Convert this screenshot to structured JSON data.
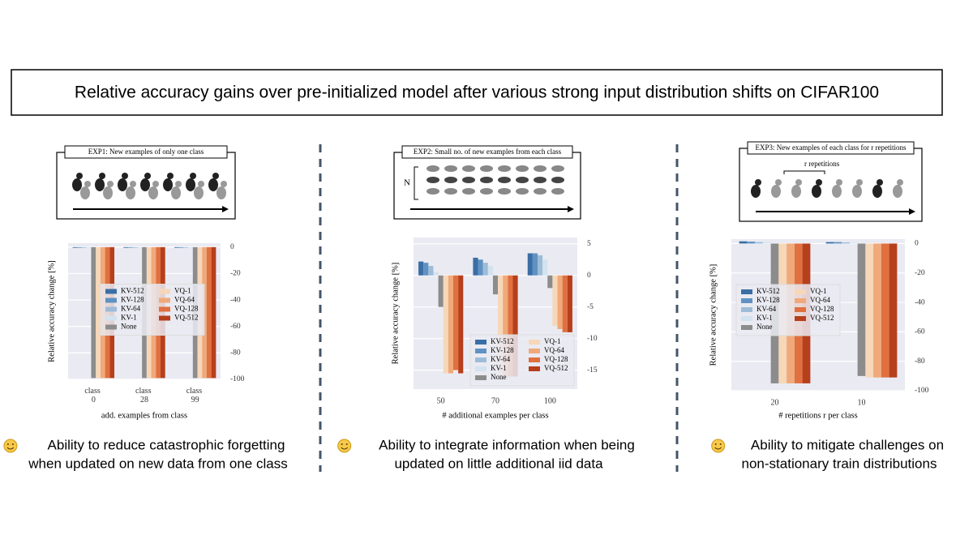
{
  "title": "Relative accuracy gains over pre-initialized model after various strong input distribution shifts on CIFAR100",
  "panels": [
    {
      "diagram_title": "EXP1: New examples of only one class",
      "caption": [
        "Ability to reduce catastrophic forgetting",
        "when updated on new data from one class"
      ]
    },
    {
      "diagram_title": "EXP2: Small no. of new examples from each class",
      "diagram_note": "N",
      "caption": [
        "Ability to integrate information when being",
        "updated on little additional iid data"
      ]
    },
    {
      "diagram_title": "EXP3: New examples of each class for r repetitions",
      "diagram_note": "r repetitions",
      "caption": [
        "Ability to mitigate challenges on",
        "non-stationary train distributions"
      ]
    }
  ],
  "chart_data": [
    {
      "type": "bar",
      "ylabel": "Relative accuracy change [%]",
      "xlabel": "add. examples from class",
      "categories": [
        "class 0",
        "class 28",
        "class 99"
      ],
      "series": [
        {
          "name": "KV-512",
          "color": "#3a6ea5",
          "values": [
            -0.5,
            -0.5,
            -0.5
          ]
        },
        {
          "name": "KV-128",
          "color": "#5f92c2",
          "values": [
            -0.5,
            -0.5,
            -0.5
          ]
        },
        {
          "name": "KV-64",
          "color": "#9dbcd8",
          "values": [
            -0.3,
            -0.3,
            -0.3
          ]
        },
        {
          "name": "KV-1",
          "color": "#d3e2ef",
          "values": [
            -0.2,
            -0.2,
            -0.2
          ]
        },
        {
          "name": "None",
          "color": "#8c8c8c",
          "values": [
            -99,
            -99,
            -99
          ]
        },
        {
          "name": "VQ-1",
          "color": "#f6d7b8",
          "values": [
            -99,
            -99,
            -99
          ]
        },
        {
          "name": "VQ-64",
          "color": "#f0a97a",
          "values": [
            -99,
            -99,
            -99
          ]
        },
        {
          "name": "VQ-128",
          "color": "#e0703f",
          "values": [
            -99,
            -99,
            -99
          ]
        },
        {
          "name": "VQ-512",
          "color": "#b63f1c",
          "values": [
            -99,
            -99,
            -99
          ]
        }
      ],
      "ylim": [
        -100,
        3
      ],
      "yticks": [
        0,
        -20,
        -40,
        -60,
        -80,
        -100
      ],
      "grid": true,
      "legend": "center"
    },
    {
      "type": "bar",
      "ylabel": "Relative accuracy change [%]",
      "xlabel": "# additional examples per class",
      "categories": [
        "50",
        "70",
        "100"
      ],
      "series": [
        {
          "name": "KV-512",
          "color": "#3a6ea5",
          "values": [
            2.2,
            2.8,
            3.5
          ]
        },
        {
          "name": "KV-128",
          "color": "#5f92c2",
          "values": [
            2,
            2.5,
            3.5
          ]
        },
        {
          "name": "KV-64",
          "color": "#9dbcd8",
          "values": [
            1.5,
            2,
            3.2
          ]
        },
        {
          "name": "KV-1",
          "color": "#d3e2ef",
          "values": [
            0.5,
            1.5,
            2.5
          ]
        },
        {
          "name": "None",
          "color": "#8c8c8c",
          "values": [
            -5,
            -3,
            -2
          ]
        },
        {
          "name": "VQ-1",
          "color": "#f6d7b8",
          "values": [
            -15.5,
            -16,
            -8
          ]
        },
        {
          "name": "VQ-64",
          "color": "#f0a97a",
          "values": [
            -15.5,
            -16,
            -8.5
          ]
        },
        {
          "name": "VQ-128",
          "color": "#e0703f",
          "values": [
            -15,
            -16,
            -9
          ]
        },
        {
          "name": "VQ-512",
          "color": "#b63f1c",
          "values": [
            -15.5,
            -16,
            -9
          ]
        }
      ],
      "ylim": [
        -18,
        6
      ],
      "yticks": [
        5,
        0,
        -5,
        -10,
        -15
      ],
      "grid": true,
      "legend": "lower right"
    },
    {
      "type": "bar",
      "ylabel": "Relative accuracy change [%]",
      "xlabel": "# repetitions r per class",
      "categories": [
        "20",
        "10"
      ],
      "series": [
        {
          "name": "KV-512",
          "color": "#3a6ea5",
          "values": [
            1.5,
            1
          ]
        },
        {
          "name": "KV-128",
          "color": "#5f92c2",
          "values": [
            1.3,
            1
          ]
        },
        {
          "name": "KV-64",
          "color": "#9dbcd8",
          "values": [
            1,
            0.8
          ]
        },
        {
          "name": "KV-1",
          "color": "#d3e2ef",
          "values": [
            0.8,
            0.5
          ]
        },
        {
          "name": "None",
          "color": "#8c8c8c",
          "values": [
            -95,
            -90
          ]
        },
        {
          "name": "VQ-1",
          "color": "#f6d7b8",
          "values": [
            -95,
            -91
          ]
        },
        {
          "name": "VQ-64",
          "color": "#f0a97a",
          "values": [
            -95,
            -91
          ]
        },
        {
          "name": "VQ-128",
          "color": "#e0703f",
          "values": [
            -95,
            -91
          ]
        },
        {
          "name": "VQ-512",
          "color": "#b63f1c",
          "values": [
            -95,
            -91
          ]
        }
      ],
      "ylim": [
        -100,
        3
      ],
      "yticks": [
        0,
        -20,
        -40,
        -60,
        -80,
        -100
      ],
      "grid": true,
      "legend": "upper left"
    }
  ]
}
